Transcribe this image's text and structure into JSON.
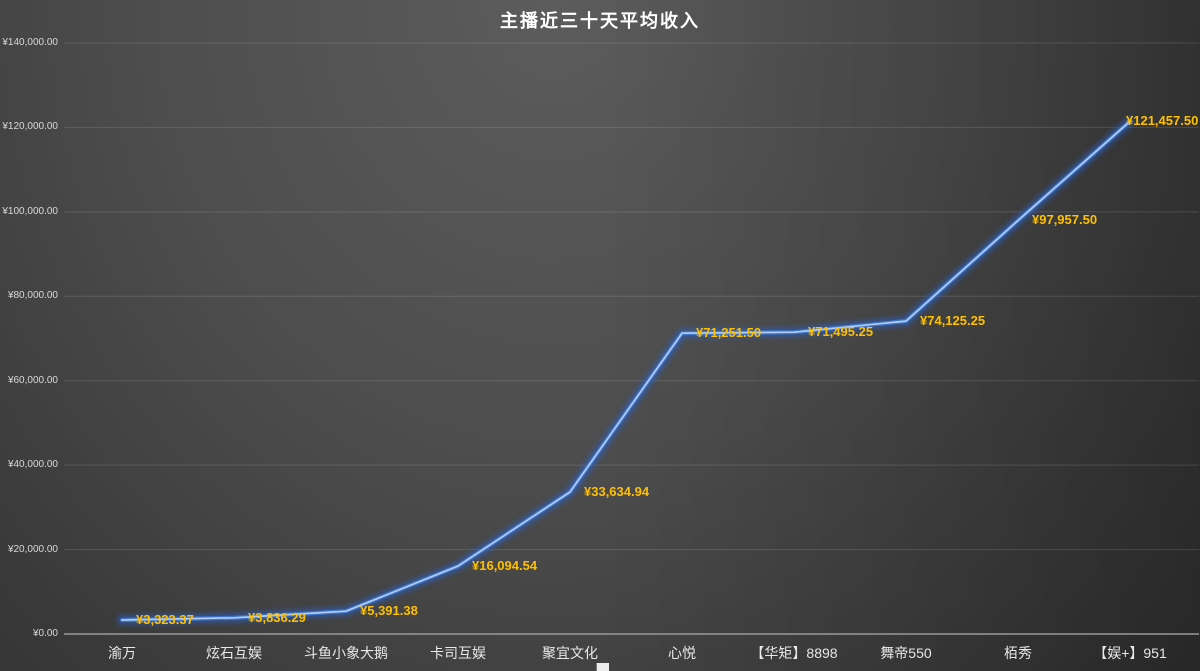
{
  "title": "主播近三十天平均收入",
  "colors": {
    "line": "#3f76cf",
    "line_glow": "#2b60c4",
    "line_core": "#b9d3f5",
    "data_label": "#ffc000",
    "title": "#ffffff",
    "axis_line": "#999999",
    "gridline": "rgba(255,255,255,0.13)",
    "tick_label": "#d9d9d9",
    "category_label": "#e8e8e8",
    "background_light": "#5c5c5c",
    "background_dark": "#2b2b2b"
  },
  "chart_data": {
    "type": "line",
    "title": "主播近三十天平均收入",
    "categories": [
      "渝万",
      "炫石互娱",
      "斗鱼小象大鹅",
      "卡司互娱",
      "聚宜文化",
      "心悦",
      "【华矩】8898",
      "舞帝550",
      "栢秀",
      "【娱+】951"
    ],
    "values": [
      3323.37,
      3836.29,
      5391.38,
      16094.54,
      33634.94,
      71251.5,
      71495.25,
      74125.25,
      97957.5,
      121457.5
    ],
    "data_labels": [
      "¥3,323.37",
      "¥3,836.29",
      "¥5,391.38",
      "¥16,094.54",
      "¥33,634.94",
      "¥71,251.50",
      "¥71,495.25",
      "¥74,125.25",
      "¥97,957.50",
      "¥121,457.50"
    ],
    "y_ticks": [
      "¥0.00",
      "¥20,000.00",
      "¥40,000.00",
      "¥60,000.00",
      "¥80,000.00",
      "¥100,000.00",
      "¥120,000.00",
      "¥140,000.00"
    ],
    "ylim": [
      0,
      140000
    ],
    "y_tick_step": 20000,
    "grid": true,
    "legend": "none",
    "line_style": "glow"
  }
}
